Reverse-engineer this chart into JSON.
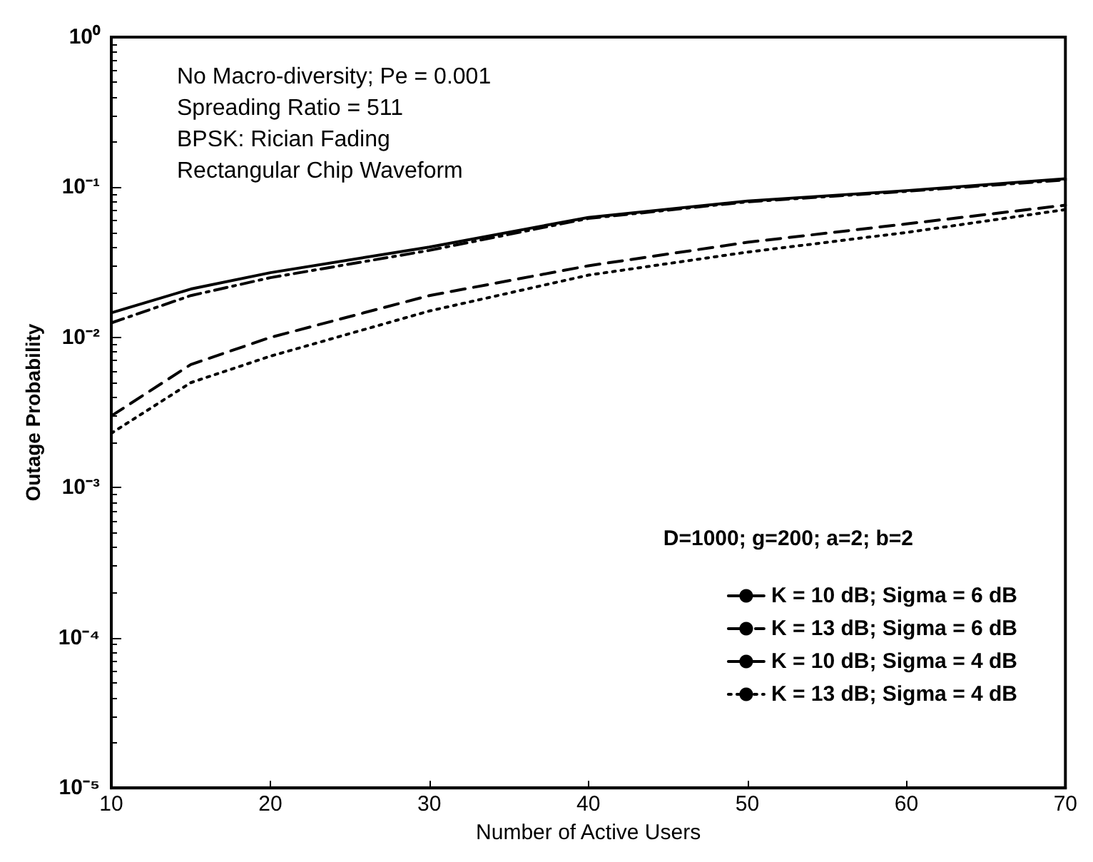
{
  "chart_data": {
    "type": "line",
    "xlabel": "Number of Active Users",
    "ylabel": "Outage Probability",
    "x": [
      10,
      15,
      20,
      30,
      40,
      50,
      60,
      70
    ],
    "series": [
      {
        "name": "K = 10 dB; Sigma = 6 dB",
        "color": "#000000",
        "line_style": "solid",
        "values": [
          0.0146,
          0.021,
          0.027,
          0.04,
          0.063,
          0.081,
          0.095,
          0.114
        ]
      },
      {
        "name": "K = 13 dB; Sigma = 6 dB",
        "color": "#000000",
        "line_style": "dashdot",
        "values": [
          0.0125,
          0.019,
          0.025,
          0.038,
          0.062,
          0.08,
          0.094,
          0.112
        ]
      },
      {
        "name": "K = 10 dB; Sigma = 4 dB",
        "color": "#000000",
        "line_style": "dashed",
        "values": [
          0.003,
          0.0066,
          0.01,
          0.019,
          0.03,
          0.043,
          0.057,
          0.076
        ]
      },
      {
        "name": "K = 13 dB; Sigma = 4 dB",
        "color": "#000000",
        "line_style": "dotted",
        "values": [
          0.0023,
          0.005,
          0.0075,
          0.015,
          0.026,
          0.037,
          0.05,
          0.071
        ]
      }
    ],
    "legend_title": "D=1000; g=200; a=2; b=2",
    "legend": "bottom right",
    "annotations": [
      "No Macro-diversity; Pe = 0.001",
      "Spreading Ratio = 511",
      "BPSK: Rician Fading",
      "Rectangular Chip Waveform"
    ],
    "log": "y",
    "grid": false,
    "marker": "none",
    "xlim": [
      10,
      70
    ],
    "xticks": [
      10,
      20,
      30,
      40,
      50,
      60,
      70
    ],
    "ylim": [
      1e-05,
      1
    ],
    "yticks": [
      {
        "value": 1e-05,
        "label": "10⁻⁵"
      },
      {
        "value": 0.0001,
        "label": "10⁻⁴"
      },
      {
        "value": 0.001,
        "label": "10⁻³"
      },
      {
        "value": 0.01,
        "label": "10⁻²"
      },
      {
        "value": 0.1,
        "label": "10⁻¹"
      },
      {
        "value": 1,
        "label": "10⁰"
      }
    ]
  }
}
